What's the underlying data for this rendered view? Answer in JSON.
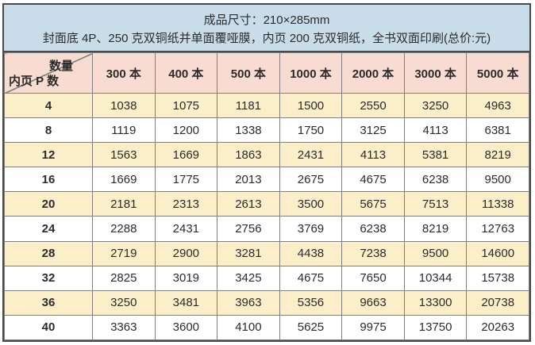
{
  "header": {
    "line1": "成品尺寸：210×285mm",
    "line2": "封面底 4P、250 克双铜纸并单面覆哑膜，内页 200 克双铜纸，全书双面印刷(总价:元)"
  },
  "table": {
    "corner": {
      "top_right": "数量",
      "bottom_left": "内页 P 数"
    },
    "columns": [
      "300 本",
      "400 本",
      "500 本",
      "1000 本",
      "2000 本",
      "3000 本",
      "5000 本"
    ],
    "rows": [
      {
        "pages": "4",
        "prices": [
          1038,
          1075,
          1181,
          1500,
          2550,
          3250,
          4963
        ]
      },
      {
        "pages": "8",
        "prices": [
          1119,
          1200,
          1338,
          1750,
          3125,
          4113,
          6381
        ]
      },
      {
        "pages": "12",
        "prices": [
          1563,
          1669,
          1863,
          2431,
          4113,
          5381,
          8219
        ]
      },
      {
        "pages": "16",
        "prices": [
          1669,
          1775,
          2013,
          2675,
          4675,
          6238,
          9500
        ]
      },
      {
        "pages": "20",
        "prices": [
          2181,
          2313,
          2613,
          3500,
          5675,
          7513,
          11338
        ]
      },
      {
        "pages": "24",
        "prices": [
          2288,
          2431,
          2756,
          3769,
          6238,
          8219,
          12763
        ]
      },
      {
        "pages": "28",
        "prices": [
          2719,
          2900,
          3281,
          4438,
          7238,
          9500,
          14600
        ]
      },
      {
        "pages": "32",
        "prices": [
          2825,
          3019,
          3425,
          4675,
          7650,
          10344,
          15738
        ]
      },
      {
        "pages": "36",
        "prices": [
          3250,
          3481,
          3963,
          5356,
          9663,
          13300,
          20738
        ]
      },
      {
        "pages": "40",
        "prices": [
          3363,
          3600,
          4100,
          5625,
          9975,
          13750,
          20263
        ]
      }
    ]
  },
  "colors": {
    "header_bg": "#c9dce9",
    "column_header_bg": "#f9dcd1",
    "row_alt_bg": "#faefc9",
    "row_bg": "#ffffff",
    "grid_line": "#7f7f7f",
    "outer_border": "#4a4a4a"
  }
}
